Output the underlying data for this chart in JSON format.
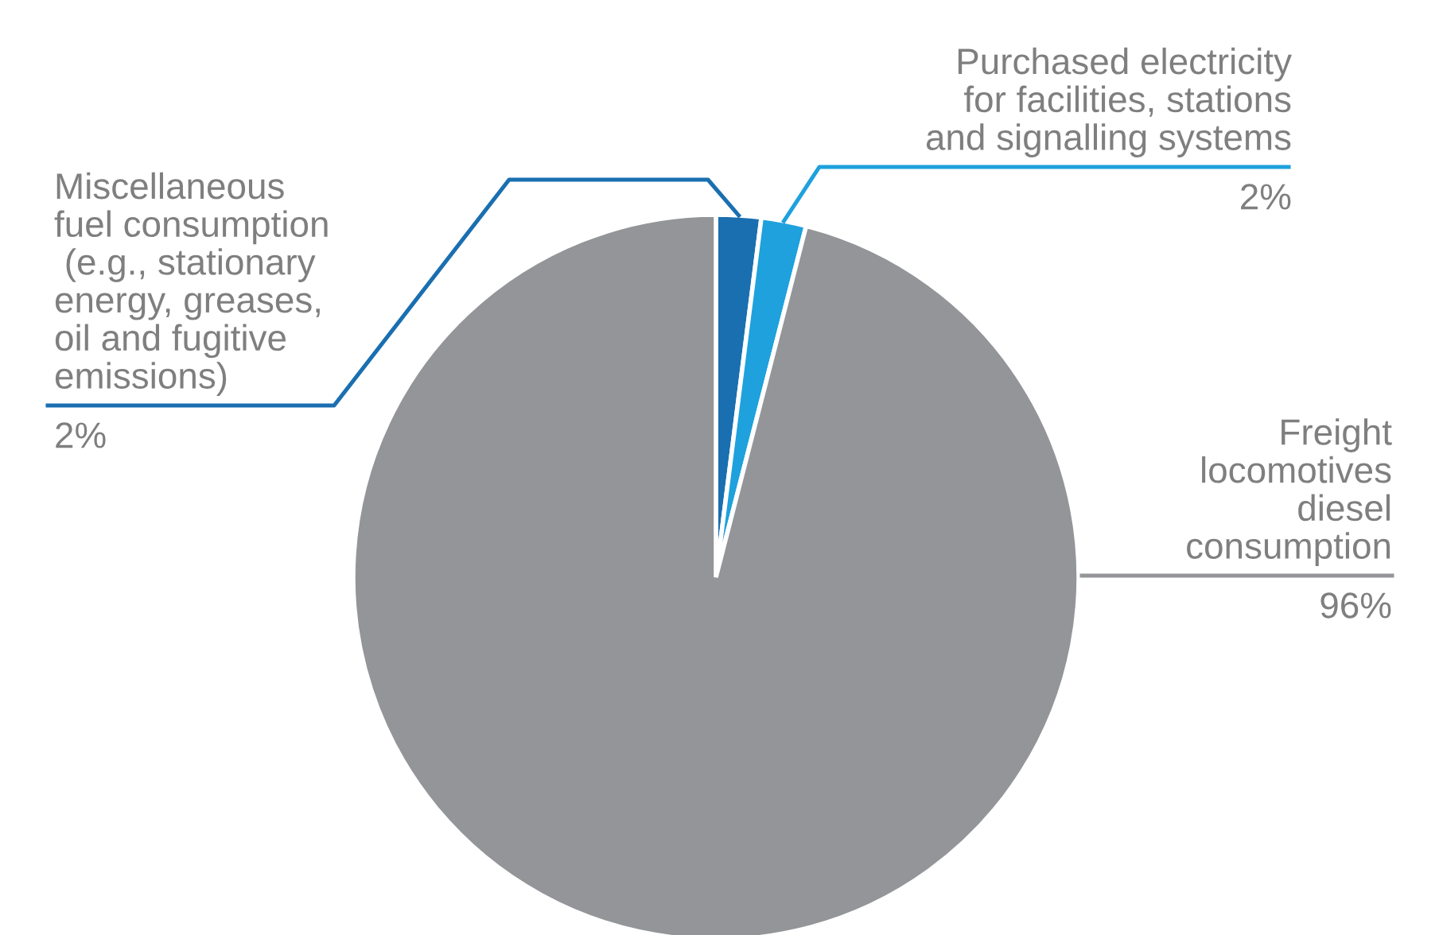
{
  "chart_data": {
    "type": "pie",
    "categories": [
      "Miscellaneous\nfuel consumption\n (e.g., stationary\nenergy, greases,\noil and fugitive\nemissions)",
      "Purchased electricity\nfor facilities, stations\nand signalling systems",
      "Freight\nlocomotives\ndiesel\nconsumption"
    ],
    "values": [
      2,
      2,
      96
    ],
    "colors": [
      "#1a6fb0",
      "#1fa1dd",
      "#939598"
    ],
    "value_labels": [
      "2%",
      "2%",
      "96%"
    ]
  }
}
